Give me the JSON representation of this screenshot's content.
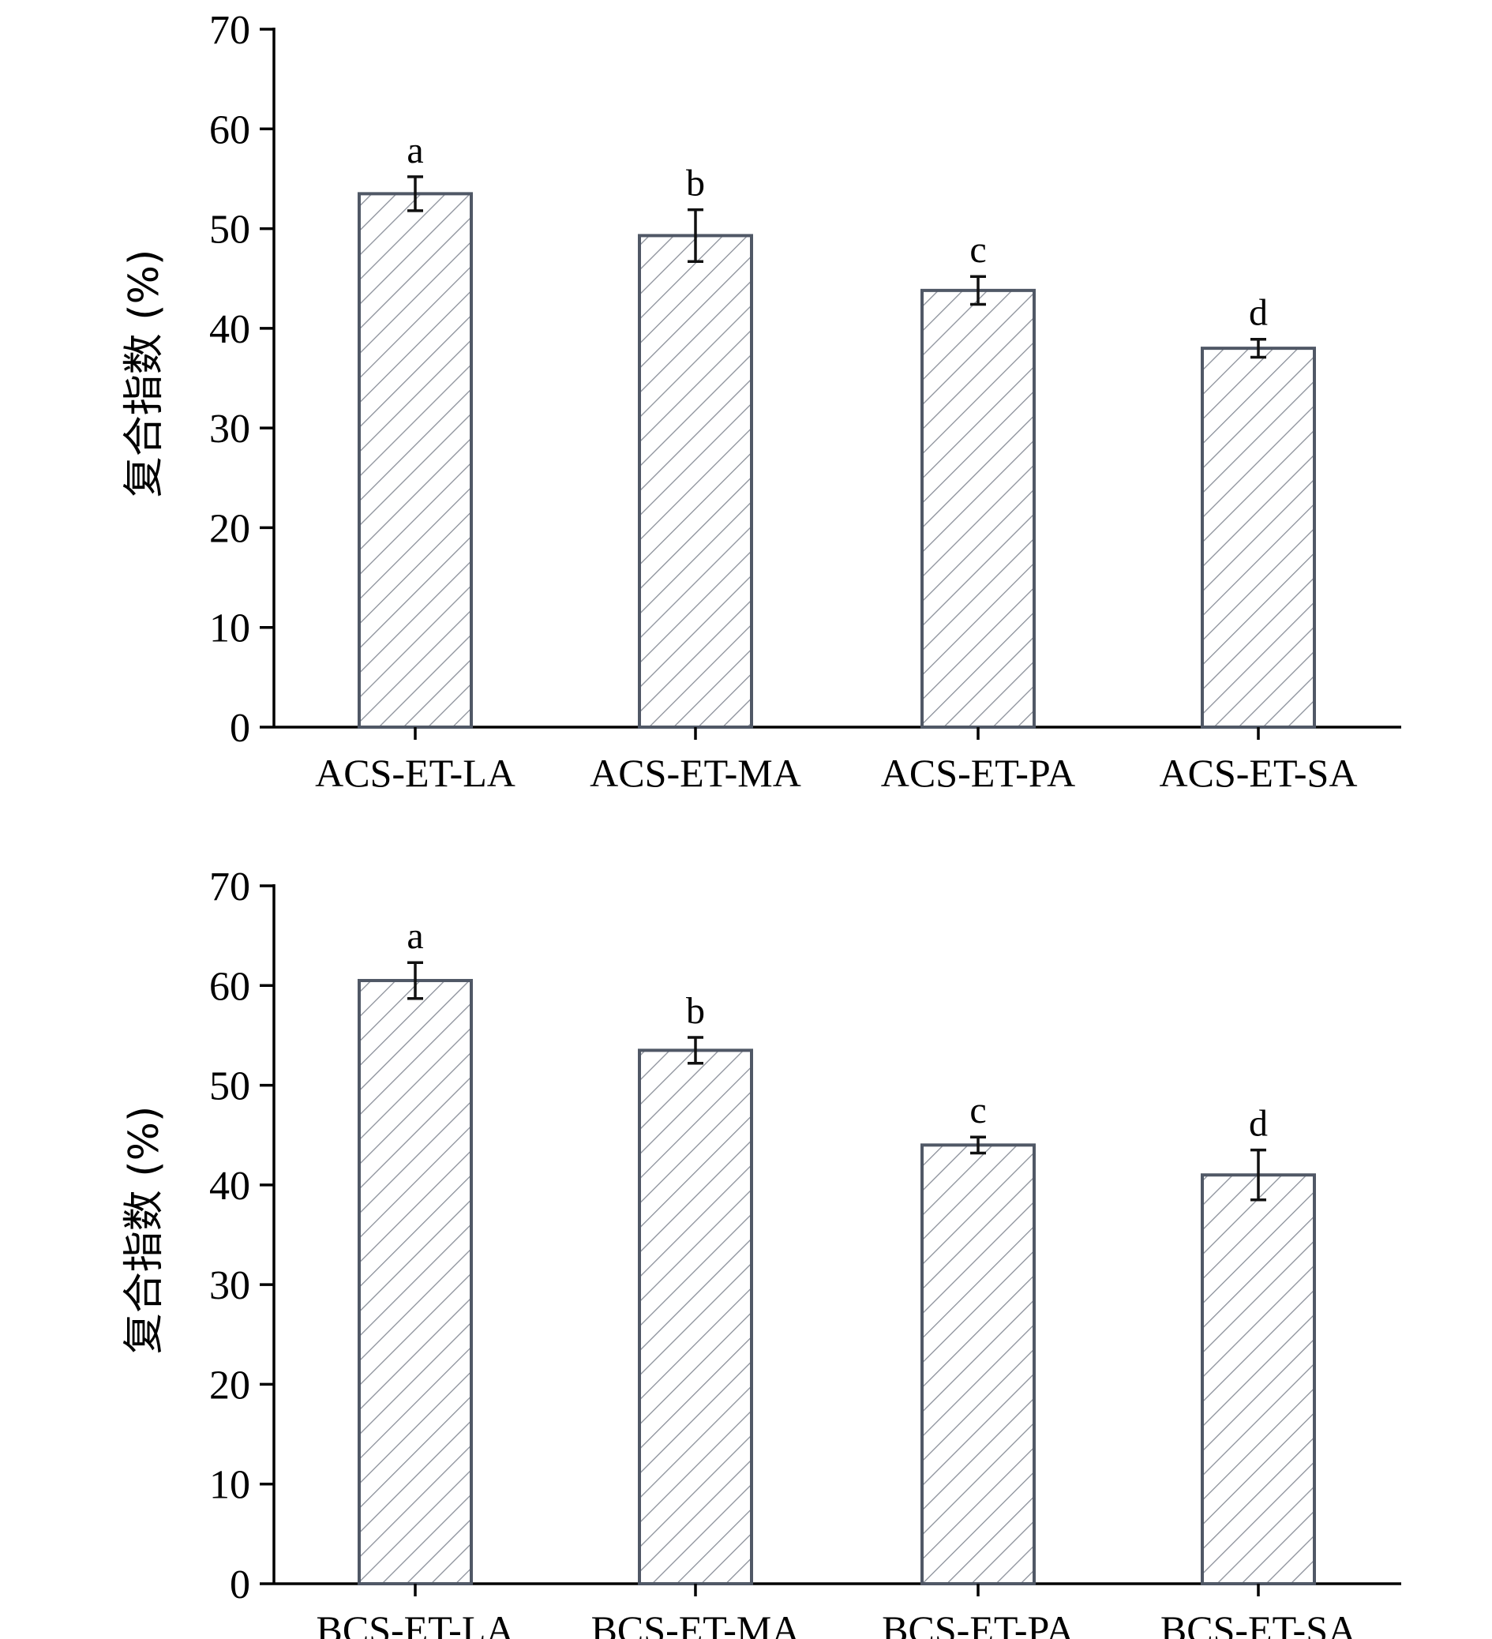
{
  "chart_data": [
    {
      "type": "bar",
      "ylabel": "复合指数 (%)",
      "xlabel": "",
      "ylim": [
        0,
        70
      ],
      "yticks": [
        0,
        10,
        20,
        30,
        40,
        50,
        60,
        70
      ],
      "categories": [
        "ACS-ET-LA",
        "ACS-ET-MA",
        "ACS-ET-PA",
        "ACS-ET-SA"
      ],
      "values": [
        53.5,
        49.3,
        43.8,
        38.0
      ],
      "errors": [
        1.7,
        2.6,
        1.4,
        0.9
      ],
      "significance": [
        "a",
        "b",
        "c",
        "d"
      ],
      "fill_pattern": "diagonal-hatch",
      "bar_edge_color": "#505866",
      "hatch_color": "#8a8f99",
      "grid": false,
      "legend": "none"
    },
    {
      "type": "bar",
      "ylabel": "复合指数 (%)",
      "xlabel": "",
      "ylim": [
        0,
        70
      ],
      "yticks": [
        0,
        10,
        20,
        30,
        40,
        50,
        60,
        70
      ],
      "categories": [
        "BCS-ET-LA",
        "BCS-ET-MA",
        "BCS-ET-PA",
        "BCS-ET-SA"
      ],
      "values": [
        60.5,
        53.5,
        44.0,
        41.0
      ],
      "errors": [
        1.8,
        1.3,
        0.8,
        2.5
      ],
      "significance": [
        "a",
        "b",
        "c",
        "d"
      ],
      "fill_pattern": "diagonal-hatch",
      "bar_edge_color": "#505866",
      "hatch_color": "#8a8f99",
      "grid": false,
      "legend": "none"
    }
  ]
}
